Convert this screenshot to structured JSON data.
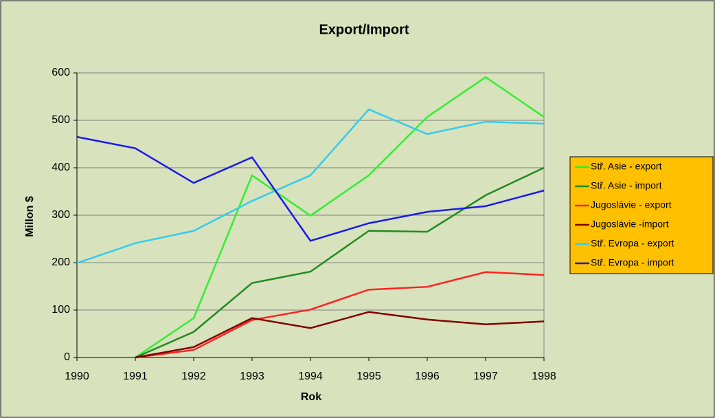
{
  "chart_data": {
    "type": "line",
    "title": "Export/Import",
    "x_label": "Rok",
    "y_label": "Millon $",
    "x": [
      1990,
      1991,
      1992,
      1993,
      1994,
      1995,
      1996,
      1997,
      1998
    ],
    "xlim": [
      1990,
      1998
    ],
    "xticks": [
      1990,
      1991,
      1992,
      1993,
      1994,
      1995,
      1996,
      1997,
      1998
    ],
    "ylim": [
      0,
      600
    ],
    "yticks": [
      0,
      100,
      200,
      300,
      400,
      500,
      600
    ],
    "grid": true,
    "legend": "right",
    "series": [
      {
        "name": "Stř. Asie - export",
        "color": "#33ee33",
        "values": [
          null,
          0,
          83,
          384,
          299,
          384,
          507,
          591,
          507
        ]
      },
      {
        "name": "Stř. Asie - import",
        "color": "#228b22",
        "values": [
          null,
          0,
          54,
          157,
          181,
          267,
          265,
          342,
          400
        ]
      },
      {
        "name": "Jugoslávie - export",
        "color": "#ff2222",
        "values": [
          null,
          0,
          16,
          79,
          101,
          143,
          149,
          180,
          174
        ]
      },
      {
        "name": "Jugoslávie -import",
        "color": "#800000",
        "values": [
          null,
          0,
          22,
          83,
          62,
          96,
          80,
          70,
          76
        ]
      },
      {
        "name": "Stř. Evropa - export",
        "color": "#33ccee",
        "values": [
          199,
          241,
          267,
          330,
          384,
          523,
          471,
          497,
          493
        ]
      },
      {
        "name": "Stř. Evropa - import",
        "color": "#1a1aee",
        "values": [
          465,
          441,
          368,
          422,
          246,
          283,
          307,
          319,
          352
        ]
      }
    ]
  }
}
